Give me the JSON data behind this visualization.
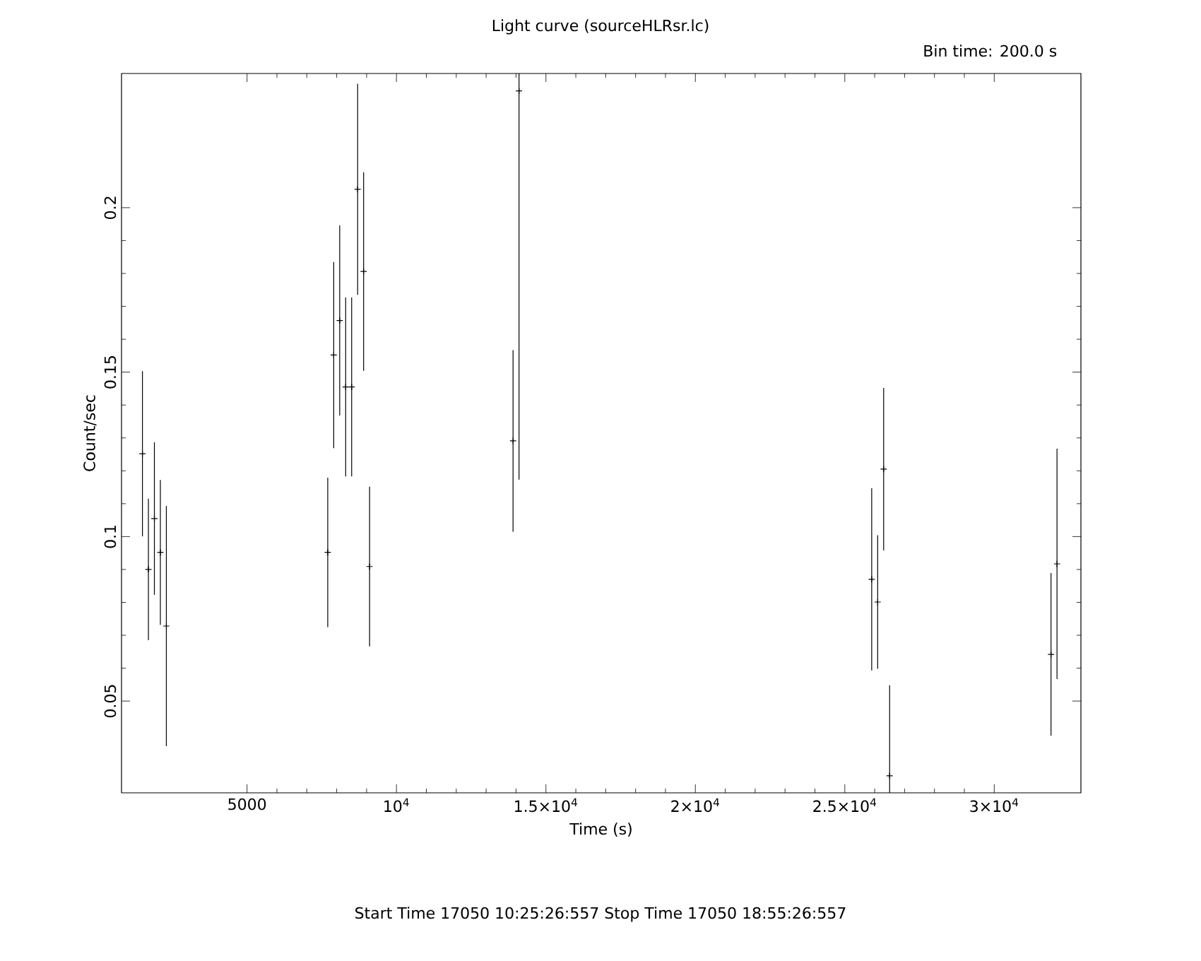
{
  "chart_data": {
    "type": "scatter",
    "title": "Light curve (sourceHLRsr.lc)",
    "xlabel": "Time (s)",
    "ylabel": "Count/sec",
    "annotations": [
      "Bin time:    200.0     s",
      "Start Time 17050 10:25:26:557    Stop Time 17050 18:55:26:557"
    ],
    "xlim": [
      800,
      32900
    ],
    "ylim": [
      0.0221,
      0.2408
    ],
    "xticks": [
      5000,
      {
        "value": 10000,
        "label": "10$^{4}$"
      },
      {
        "value": 15000,
        "label": "1.5×10$^{4}$"
      },
      {
        "value": 20000,
        "label": "2×10$^{4}$"
      },
      {
        "value": 25000,
        "label": "2.5×10$^{4}$"
      },
      {
        "value": 30000,
        "label": "3×10$^{4}$"
      }
    ],
    "yticks": [
      0.05,
      0.1,
      0.15,
      0.2
    ],
    "grid": false,
    "legend": false,
    "marker": "cross",
    "series": [
      {
        "color": "#000000",
        "x": [
          1500,
          1700,
          1900,
          2100,
          2300,
          7700,
          7900,
          8100,
          8300,
          8500,
          8700,
          8900,
          9100,
          13900,
          14100,
          25900,
          26100,
          26300,
          26500,
          31900,
          32100
        ],
        "values": [
          0.1252,
          0.09,
          0.1055,
          0.0952,
          0.0728,
          0.0952,
          0.1552,
          0.1657,
          0.1455,
          0.1455,
          0.2056,
          0.1806,
          0.0909,
          0.1291,
          0.2355,
          0.087,
          0.0801,
          0.1205,
          0.0273,
          0.0642,
          0.0917
        ],
        "errors": [
          0.0251,
          0.0215,
          0.0232,
          0.022,
          0.0365,
          0.0227,
          0.0283,
          0.0289,
          0.0272,
          0.0272,
          0.0321,
          0.0302,
          0.0243,
          0.0276,
          [
            0.1173,
            0.2408
          ],
          0.0277,
          0.0203,
          0.0247,
          [
            0.0221,
            0.0548
          ],
          0.0247,
          0.035
        ]
      }
    ]
  }
}
